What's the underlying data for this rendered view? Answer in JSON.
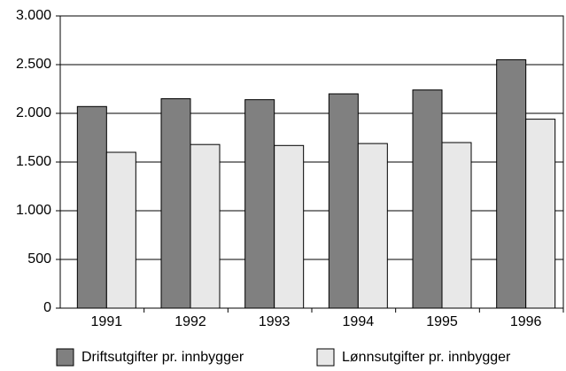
{
  "chart_data": {
    "type": "bar",
    "categories": [
      "1991",
      "1992",
      "1993",
      "1994",
      "1995",
      "1996"
    ],
    "series": [
      {
        "name": "Driftsutgifter pr. innbygger",
        "color": "#808080",
        "values": [
          2070,
          2150,
          2140,
          2200,
          2240,
          2550
        ]
      },
      {
        "name": "Lønnsutgifter pr. innbygger",
        "color": "#e8e8e8",
        "values": [
          1600,
          1680,
          1670,
          1690,
          1700,
          1940
        ]
      }
    ],
    "ylim": [
      0,
      3000
    ],
    "yticks": [
      0,
      500,
      {
        "value": 1000,
        "label": "1.000"
      },
      {
        "value": 1500,
        "label": "1.500"
      },
      {
        "value": 2000,
        "label": "2.000"
      },
      {
        "value": 2500,
        "label": "2.500"
      },
      {
        "value": 3000,
        "label": "3.000"
      }
    ],
    "grid": true
  }
}
